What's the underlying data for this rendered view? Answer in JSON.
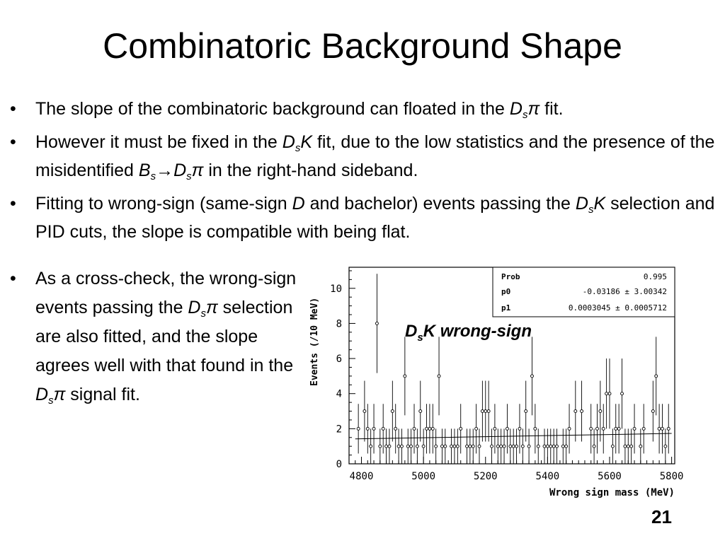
{
  "slide": {
    "title": "Combinatoric Background Shape",
    "page_number": "21",
    "bullet_glyph": "•"
  },
  "bullets": [
    {
      "t1": "The slope of the combinatoric background can floated in the ",
      "sym": "D",
      "sub": "s",
      "sym2": "π",
      "t2": " fit."
    },
    {
      "t1": "However it must be fixed in the ",
      "sym": "D",
      "sub": "s",
      "sym2": "K",
      "t2": " fit, due to the low statistics and the presence of the misidentified ",
      "sym3": "B",
      "sub3": "s",
      "arrow": "→",
      "sym4": "D",
      "sub4": "s",
      "sym5": "π",
      "t3": " in the right-hand sideband."
    },
    {
      "t1": "Fitting to wrong-sign (same-sign ",
      "sym": "D",
      "t2": " and bachelor) events passing the ",
      "sym2": "D",
      "sub2": "s",
      "sym3": "K",
      "t3": "  selection and PID cuts, the slope is compatible with being flat."
    }
  ],
  "side_bullet": {
    "t1": "As a cross-check, the wrong-sign events passing the ",
    "sym": "D",
    "sub": "s",
    "sym2": "π",
    "t2": " selection are also fitted, and the slope agrees well with that found in the ",
    "sym3": "D",
    "sub3": "s",
    "sym4": "π",
    "t3": " signal fit."
  },
  "chart_data": {
    "type": "scatter",
    "title": "",
    "annotation": {
      "sym": "D",
      "sub": "s",
      "rest": "K wrong-sign"
    },
    "xlabel": "Wrong sign mass (MeV)",
    "ylabel": "Events  (/10 MeV)",
    "xlim": [
      4760,
      5810
    ],
    "ylim": [
      0,
      11.2
    ],
    "x_ticks": [
      4800,
      5000,
      5200,
      5400,
      5600,
      5800
    ],
    "y_ticks": [
      0,
      2,
      4,
      6,
      8,
      10
    ],
    "stats_box": [
      {
        "label": "Prob",
        "value": "0.995"
      },
      {
        "label": "p0",
        "value": "-0.03186 ± 3.00342"
      },
      {
        "label": "p1",
        "value": "0.0003045 ± 0.0005712"
      }
    ],
    "fit_line": {
      "x": [
        4780,
        5800
      ],
      "y": [
        1.42,
        1.73
      ]
    },
    "points_x": [
      4780,
      4790,
      4800,
      4810,
      4820,
      4830,
      4840,
      4850,
      4860,
      4870,
      4880,
      4890,
      4900,
      4910,
      4920,
      4930,
      4940,
      4950,
      4960,
      4970,
      4980,
      4990,
      5000,
      5010,
      5020,
      5030,
      5040,
      5050,
      5060,
      5070,
      5080,
      5090,
      5100,
      5110,
      5120,
      5130,
      5140,
      5150,
      5160,
      5170,
      5180,
      5190,
      5200,
      5210,
      5220,
      5230,
      5240,
      5250,
      5260,
      5270,
      5280,
      5290,
      5300,
      5310,
      5320,
      5330,
      5340,
      5350,
      5360,
      5370,
      5380,
      5390,
      5400,
      5410,
      5420,
      5430,
      5440,
      5450,
      5460,
      5470,
      5480,
      5490,
      5500,
      5510,
      5520,
      5530,
      5540,
      5550,
      5560,
      5570,
      5580,
      5590,
      5600,
      5610,
      5620,
      5630,
      5640,
      5650,
      5660,
      5670,
      5680,
      5690,
      5700,
      5710,
      5720,
      5730,
      5740,
      5750,
      5760,
      5770,
      5780,
      5790,
      5800
    ],
    "points_y": [
      0,
      2,
      0,
      3,
      2,
      1,
      2,
      8,
      1,
      2,
      1,
      1,
      3,
      2,
      1,
      1,
      5,
      1,
      1,
      2,
      1,
      3,
      1,
      2,
      2,
      2,
      1,
      5,
      1,
      1,
      0,
      1,
      1,
      1,
      2,
      0,
      1,
      1,
      1,
      2,
      1,
      3,
      3,
      3,
      1,
      2,
      1,
      1,
      1,
      2,
      1,
      1,
      1,
      2,
      1,
      3,
      1,
      5,
      2,
      1,
      0,
      1,
      1,
      1,
      1,
      1,
      0,
      1,
      1,
      2,
      0,
      3,
      0,
      3,
      0,
      0,
      2,
      1,
      2,
      3,
      2,
      4,
      4,
      1,
      2,
      2,
      4,
      1,
      1,
      1,
      2,
      0,
      1,
      2,
      0,
      0,
      3,
      5,
      2,
      2,
      1,
      2,
      0
    ]
  }
}
